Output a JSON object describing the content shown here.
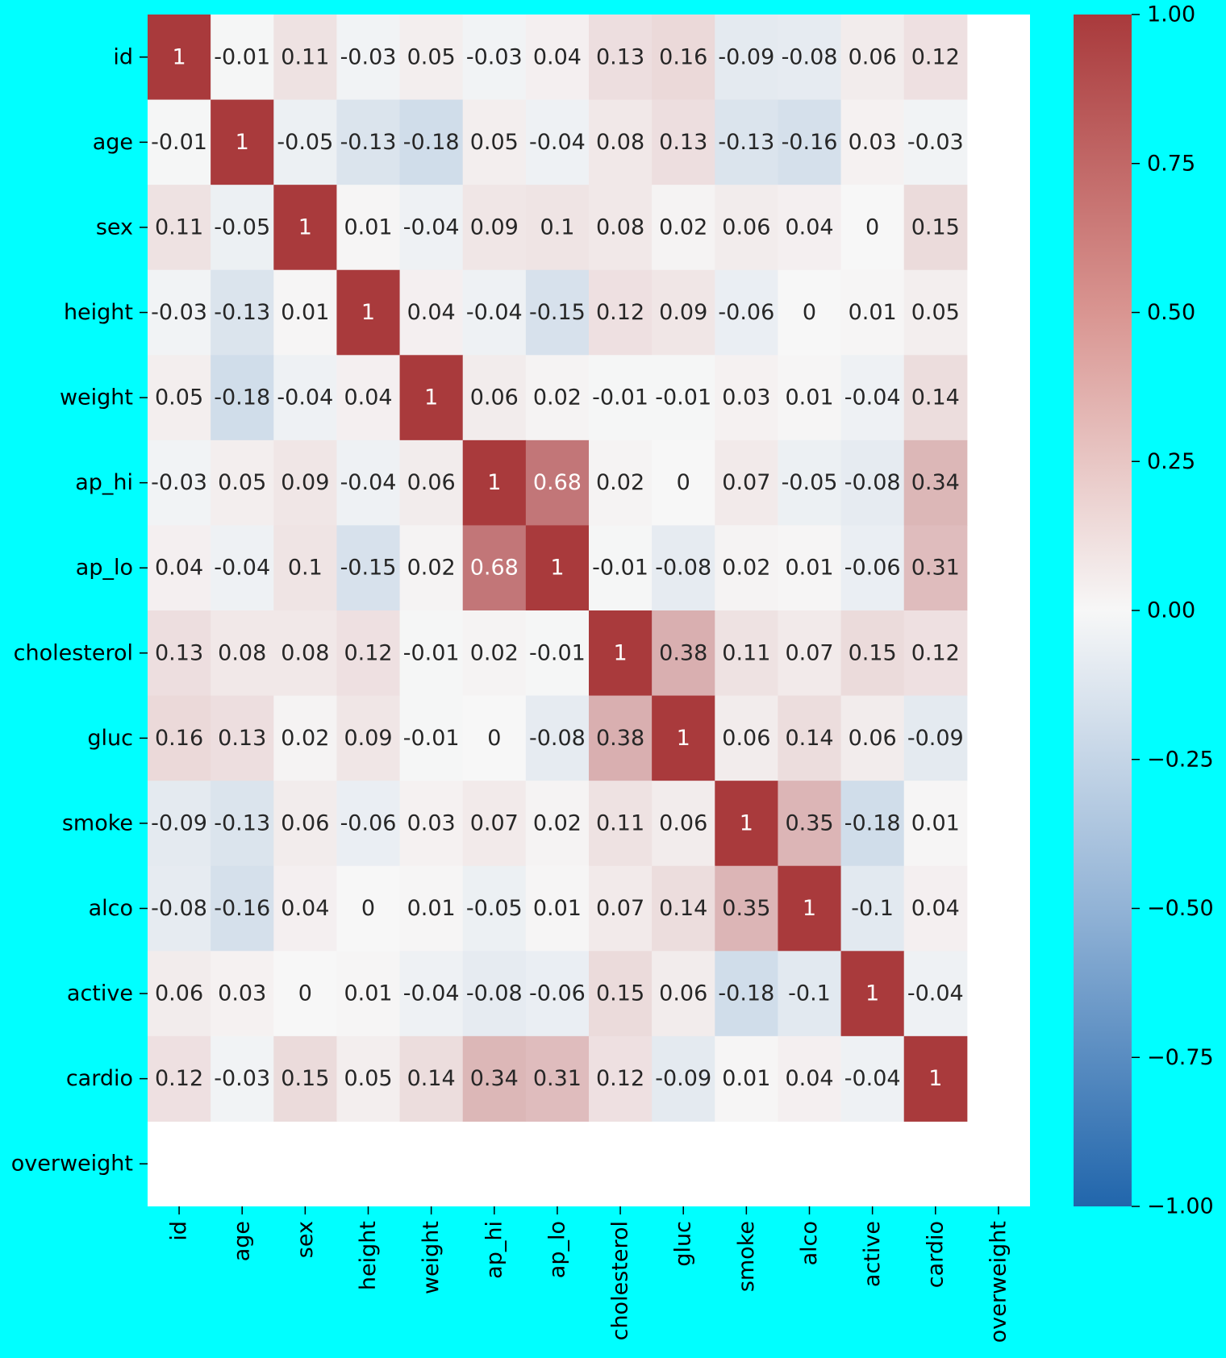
{
  "chart_data": {
    "type": "heatmap",
    "title": "",
    "xlabel": "",
    "ylabel": "",
    "rows": [
      "id",
      "age",
      "sex",
      "height",
      "weight",
      "ap_hi",
      "ap_lo",
      "cholesterol",
      "gluc",
      "smoke",
      "alco",
      "active",
      "cardio",
      "overweight"
    ],
    "columns": [
      "id",
      "age",
      "sex",
      "height",
      "weight",
      "ap_hi",
      "ap_lo",
      "cholesterol",
      "gluc",
      "smoke",
      "alco",
      "active",
      "cardio",
      "overweight"
    ],
    "values": [
      [
        1,
        -0.01,
        0.11,
        -0.03,
        0.05,
        -0.03,
        0.04,
        0.13,
        0.16,
        -0.09,
        -0.08,
        0.06,
        0.12,
        null
      ],
      [
        -0.01,
        1,
        -0.05,
        -0.13,
        -0.18,
        0.05,
        -0.04,
        0.08,
        0.13,
        -0.13,
        -0.16,
        0.03,
        -0.03,
        null
      ],
      [
        0.11,
        -0.05,
        1,
        0.01,
        -0.04,
        0.09,
        0.1,
        0.08,
        0.02,
        0.06,
        0.04,
        0,
        0.15,
        null
      ],
      [
        -0.03,
        -0.13,
        0.01,
        1,
        0.04,
        -0.04,
        -0.15,
        0.12,
        0.09,
        -0.06,
        0,
        0.01,
        0.05,
        null
      ],
      [
        0.05,
        -0.18,
        -0.04,
        0.04,
        1,
        0.06,
        0.02,
        -0.01,
        -0.01,
        0.03,
        0.01,
        -0.04,
        0.14,
        null
      ],
      [
        -0.03,
        0.05,
        0.09,
        -0.04,
        0.06,
        1,
        0.68,
        0.02,
        0,
        0.07,
        -0.05,
        -0.08,
        0.34,
        null
      ],
      [
        0.04,
        -0.04,
        0.1,
        -0.15,
        0.02,
        0.68,
        1,
        -0.01,
        -0.08,
        0.02,
        0.01,
        -0.06,
        0.31,
        null
      ],
      [
        0.13,
        0.08,
        0.08,
        0.12,
        -0.01,
        0.02,
        -0.01,
        1,
        0.38,
        0.11,
        0.07,
        0.15,
        0.12,
        null
      ],
      [
        0.16,
        0.13,
        0.02,
        0.09,
        -0.01,
        0,
        -0.08,
        0.38,
        1,
        0.06,
        0.14,
        0.06,
        -0.09,
        null
      ],
      [
        -0.09,
        -0.13,
        0.06,
        -0.06,
        0.03,
        0.07,
        0.02,
        0.11,
        0.06,
        1,
        0.35,
        -0.18,
        0.01,
        null
      ],
      [
        -0.08,
        -0.16,
        0.04,
        0,
        0.01,
        -0.05,
        0.01,
        0.07,
        0.14,
        0.35,
        1,
        -0.1,
        0.04,
        null
      ],
      [
        0.06,
        0.03,
        0,
        0.01,
        -0.04,
        -0.08,
        -0.06,
        0.15,
        0.06,
        -0.18,
        -0.1,
        1,
        -0.04,
        null
      ],
      [
        0.12,
        -0.03,
        0.15,
        0.05,
        0.14,
        0.34,
        0.31,
        0.12,
        -0.09,
        0.01,
        0.04,
        -0.04,
        1,
        null
      ],
      [
        null,
        null,
        null,
        null,
        null,
        null,
        null,
        null,
        null,
        null,
        null,
        null,
        null,
        null
      ]
    ],
    "colorbar": {
      "range": [
        -1,
        1
      ],
      "ticks": [
        "1.00",
        "0.75",
        "0.50",
        "0.25",
        "0.00",
        "−0.25",
        "−0.50",
        "−0.75",
        "−1.00"
      ],
      "colors": {
        "low": "#2166ac",
        "mid": "#f7f7f7",
        "high": "#a93a3c"
      }
    },
    "background_color": "#00ffff",
    "missing_color": "#ffffff",
    "grid": false
  }
}
